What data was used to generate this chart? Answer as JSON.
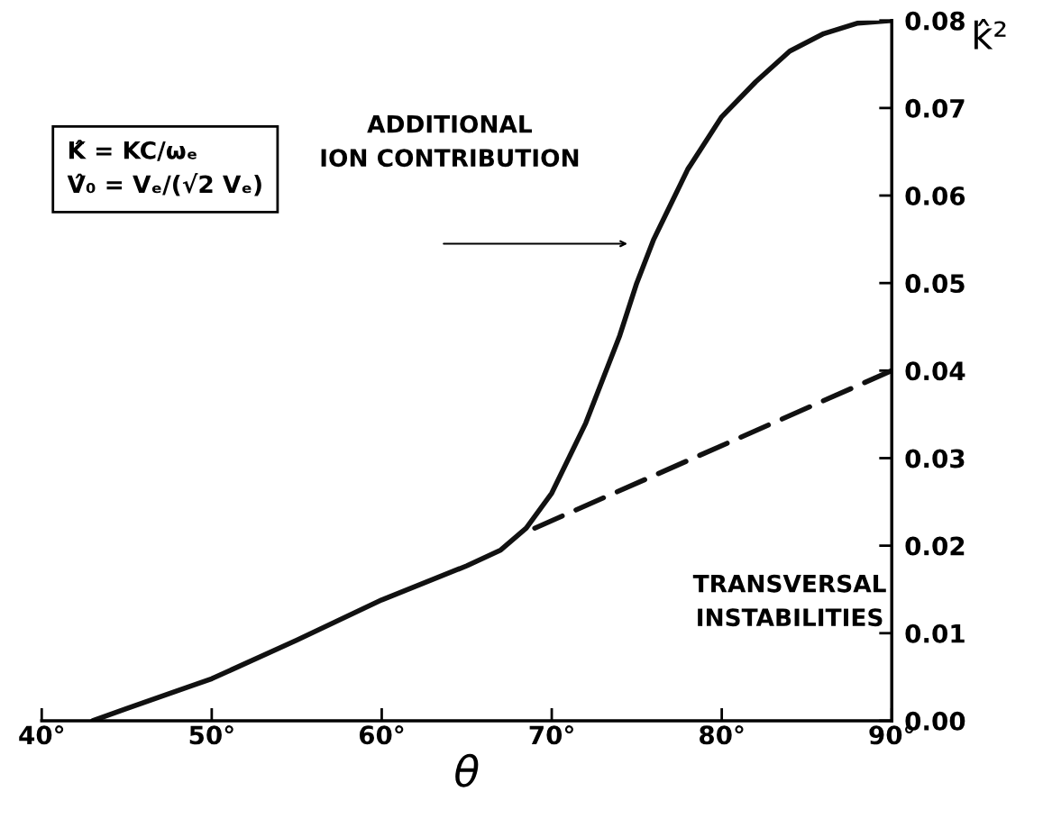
{
  "chart_data": {
    "type": "line",
    "xlabel": "θ",
    "ylabel": "k̂²",
    "xlim": [
      40,
      90
    ],
    "ylim": [
      0,
      0.08
    ],
    "xticks": [
      {
        "value": 40,
        "label": "40°"
      },
      {
        "value": 50,
        "label": "50°"
      },
      {
        "value": 60,
        "label": "60°"
      },
      {
        "value": 70,
        "label": "70°"
      },
      {
        "value": 80,
        "label": "80°"
      },
      {
        "value": 90,
        "label": "90°"
      }
    ],
    "yticks": [
      {
        "value": 0,
        "label": "0.00"
      },
      {
        "value": 0.01,
        "label": "0.01"
      },
      {
        "value": 0.02,
        "label": "0.02"
      },
      {
        "value": 0.03,
        "label": "0.03"
      },
      {
        "value": 0.04,
        "label": "0.04"
      },
      {
        "value": 0.05,
        "label": "0.05"
      },
      {
        "value": 0.06,
        "label": "0.06"
      },
      {
        "value": 0.07,
        "label": "0.07"
      },
      {
        "value": 0.08,
        "label": "0.08"
      }
    ],
    "grid": false,
    "legend": false,
    "marker": "none",
    "series": [
      {
        "color": "#111111",
        "line_style": "solid",
        "x": [
          43,
          45,
          50,
          55,
          60,
          65,
          67,
          68.5,
          70,
          71,
          72,
          73,
          74,
          75,
          76,
          77,
          78,
          79,
          80,
          82,
          84,
          86,
          88,
          90
        ],
        "values": [
          0,
          0.0014,
          0.0048,
          0.0092,
          0.0138,
          0.0177,
          0.0195,
          0.022,
          0.026,
          0.03,
          0.034,
          0.039,
          0.044,
          0.05,
          0.055,
          0.059,
          0.063,
          0.066,
          0.069,
          0.073,
          0.0765,
          0.0785,
          0.0797,
          0.08
        ]
      },
      {
        "color": "#111111",
        "line_style": "dashed",
        "x": [
          69,
          90
        ],
        "values": [
          0.022,
          0.04
        ]
      }
    ],
    "annotations": [
      "ADDITIONAL\nION CONTRIBUTION",
      "TRANSVERSAL\nINSTABILITIES",
      "K̂ = KC/ωₑ\nV̂₀ = Vₑ/(√2 Vₑ)"
    ]
  }
}
